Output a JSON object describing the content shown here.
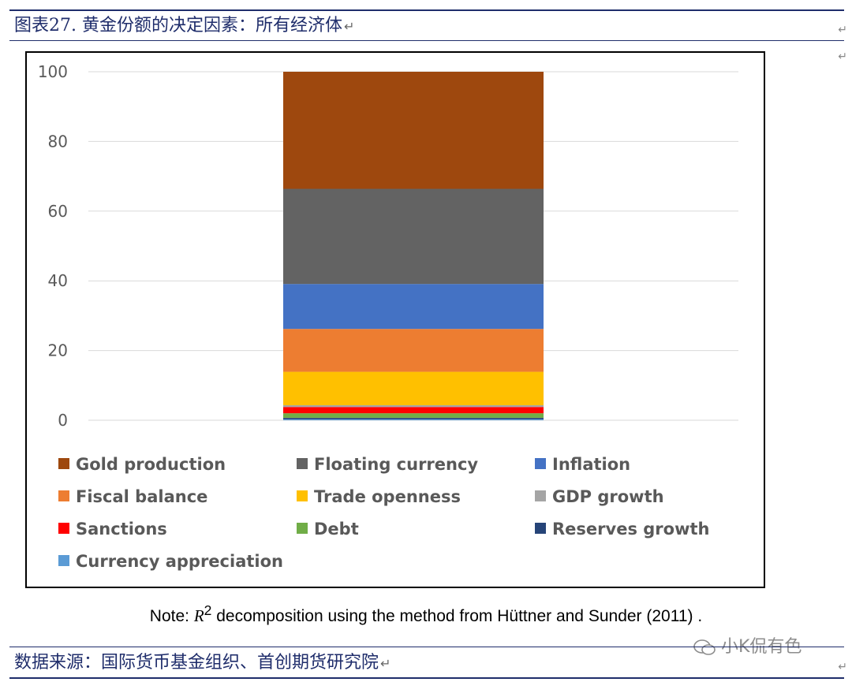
{
  "figure": {
    "title": "图表27. 黄金份额的决定因素：所有经济体",
    "note_prefix": "Note: ",
    "note_r": "R",
    "note_sup": "2",
    "note_suffix": " decomposition using the method from Hüttner and Sunder (2011) .",
    "source": "数据来源：国际货币基金组织、首创期货研究院",
    "watermark": "小K侃有色",
    "return_mark": "↵"
  },
  "chart_data": {
    "type": "bar",
    "stacked": true,
    "categories": [
      ""
    ],
    "ylim": [
      0,
      100
    ],
    "yticks": [
      0,
      20,
      40,
      60,
      80,
      100
    ],
    "grid": true,
    "legend_position": "bottom",
    "title": "",
    "xlabel": "",
    "ylabel": "",
    "series": [
      {
        "name": "Currency appreciation",
        "values": [
          0.3
        ],
        "color": "#5b9bd5"
      },
      {
        "name": "Reserves growth",
        "values": [
          0.4
        ],
        "color": "#264478"
      },
      {
        "name": "Debt",
        "values": [
          1.3
        ],
        "color": "#70ad47"
      },
      {
        "name": "Sanctions",
        "values": [
          1.8
        ],
        "color": "#ff0000"
      },
      {
        "name": "GDP growth",
        "values": [
          0.5
        ],
        "color": "#a5a5a5"
      },
      {
        "name": "Trade openness",
        "values": [
          9.6
        ],
        "color": "#ffc000"
      },
      {
        "name": "Fiscal balance",
        "values": [
          12.3
        ],
        "color": "#ed7d31"
      },
      {
        "name": "Inflation",
        "values": [
          12.9
        ],
        "color": "#4472c4"
      },
      {
        "name": "Floating currency",
        "values": [
          27.3
        ],
        "color": "#636363"
      },
      {
        "name": "Gold production",
        "values": [
          33.6
        ],
        "color": "#9e480e"
      }
    ],
    "legend_order": [
      "Gold production",
      "Floating currency",
      "Inflation",
      "Fiscal balance",
      "Trade openness",
      "GDP growth",
      "Sanctions",
      "Debt",
      "Reserves growth",
      "Currency appreciation"
    ]
  }
}
